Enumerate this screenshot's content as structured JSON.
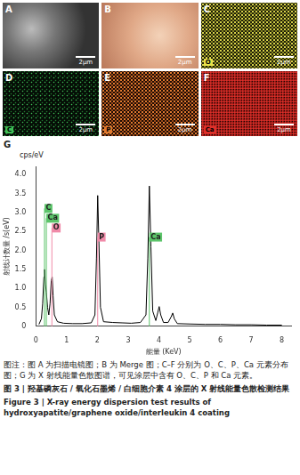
{
  "figure": {
    "panels": [
      {
        "letter": "A",
        "scale_bar": "2μm"
      },
      {
        "letter": "B",
        "scale_bar": "2μm"
      },
      {
        "letter": "C",
        "element": "O",
        "scale_bar": "2μm"
      },
      {
        "letter": "D",
        "element": "C",
        "scale_bar": "2μm"
      },
      {
        "letter": "E",
        "element": "P",
        "scale_bar": "2μm"
      },
      {
        "letter": "F",
        "element": "Ca",
        "scale_bar": "2μm"
      }
    ],
    "chart_letter": "G",
    "caption": {
      "note": "图注：图 A 为扫描电镜图；B 为 Merge 图；C–F 分别为 O、C、P、Ca 元素分布图；G 为 X 射线能量色散图谱，可见涂层中含有 O、C、P 和 Ca 元素。",
      "title_zh": "图 3 | 羟基磷灰石 / 氧化石墨烯 / 白细胞介素 4 涂层的 X 射线能量色散检测结果",
      "title_en": "Figure 3 | X-ray energy dispersion test results of hydroxyapatite/graphene oxide/interleukin 4 coating"
    }
  },
  "chart_data": {
    "type": "line",
    "unit_label": "cps/eV",
    "y_label": "射线计数量 /s(eV)",
    "x_label": "能量 (KeV)",
    "color": "#000000",
    "grid": false,
    "x": [
      0.1,
      0.18,
      0.22,
      0.26,
      0.28,
      0.31,
      0.34,
      0.38,
      0.42,
      0.46,
      0.5,
      0.53,
      0.56,
      0.6,
      0.7,
      0.9,
      1.2,
      1.5,
      1.8,
      1.92,
      1.97,
      2.01,
      2.05,
      2.1,
      2.2,
      2.5,
      2.8,
      3.1,
      3.4,
      3.58,
      3.64,
      3.69,
      3.74,
      3.8,
      3.9,
      3.96,
      4.01,
      4.06,
      4.15,
      4.3,
      4.4,
      4.45,
      4.5,
      4.6,
      5.0,
      5.5,
      6.0,
      6.5,
      7.0,
      7.5,
      8.0
    ],
    "values": [
      0.05,
      0.2,
      0.6,
      1.3,
      1.5,
      1.1,
      0.9,
      0.5,
      0.3,
      0.6,
      1.2,
      1.3,
      0.8,
      0.3,
      0.12,
      0.08,
      0.07,
      0.07,
      0.09,
      0.3,
      1.8,
      3.45,
      2.2,
      0.5,
      0.12,
      0.1,
      0.09,
      0.08,
      0.1,
      0.3,
      1.8,
      3.7,
      2.1,
      0.4,
      0.15,
      0.35,
      0.52,
      0.3,
      0.1,
      0.1,
      0.25,
      0.35,
      0.2,
      0.07,
      0.06,
      0.05,
      0.05,
      0.04,
      0.04,
      0.03,
      0.03
    ],
    "xlim": [
      0,
      8.3
    ],
    "ylim": [
      0,
      4.2
    ],
    "xticks": [
      0,
      1,
      2,
      3,
      4,
      5,
      6,
      7,
      8
    ],
    "yticks": [
      0,
      0.5,
      {
        "value": 1,
        "label": "1.0"
      },
      1.5,
      {
        "value": 2,
        "label": "2.0"
      },
      2.5,
      {
        "value": 3,
        "label": "3.0"
      },
      3.5,
      {
        "value": 4,
        "label": "4.0"
      }
    ],
    "peak_markers": [
      {
        "label": "C",
        "energy": 0.28,
        "color": "#5cc46a"
      },
      {
        "label": "Ca",
        "energy": 0.34,
        "color": "#5cc46a"
      },
      {
        "label": "O",
        "energy": 0.52,
        "color": "#f08aa8"
      },
      {
        "label": "P",
        "energy": 2.01,
        "color": "#f08aa8"
      },
      {
        "label": "Ca",
        "energy": 3.69,
        "color": "#5cc46a"
      }
    ]
  }
}
